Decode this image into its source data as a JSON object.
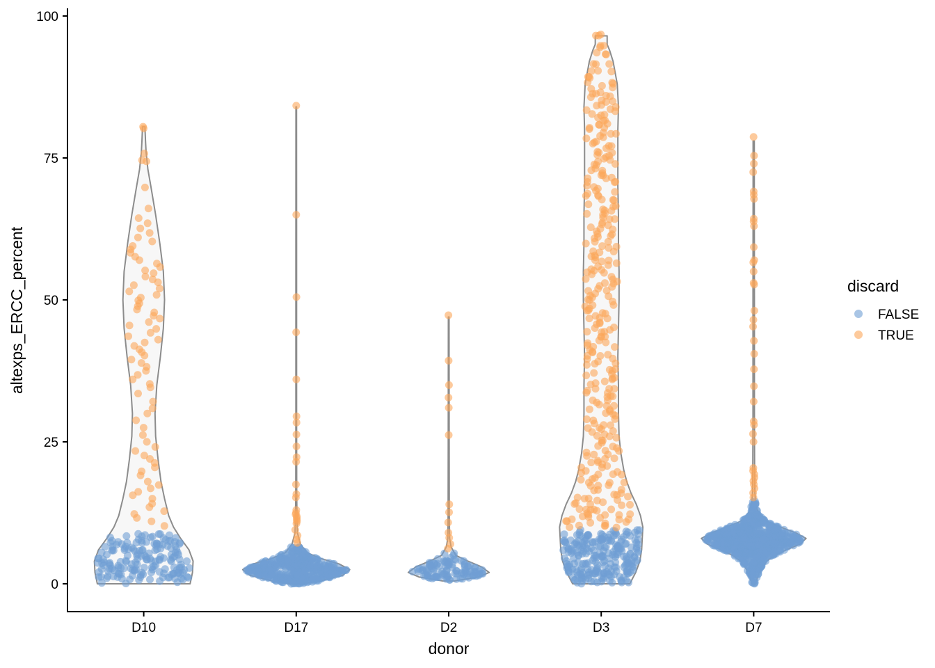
{
  "chart_data": {
    "type": "scatter",
    "subtype": "violin-with-jittered-points",
    "title": "",
    "xlabel": "donor",
    "ylabel": "altexps_ERCC_percent",
    "categories": [
      "D10",
      "D17",
      "D2",
      "D3",
      "D7"
    ],
    "ylim": [
      -5,
      101
    ],
    "yticks": [
      0,
      25,
      50,
      75,
      100
    ],
    "grid": false,
    "legend": {
      "title": "discard",
      "placement": "right",
      "entries": [
        {
          "label": "FALSE",
          "color": "#6f9fd4"
        },
        {
          "label": "TRUE",
          "color": "#fca65a"
        }
      ]
    },
    "colors": {
      "false": "#6f9fd4",
      "true": "#fca65a",
      "violin_outline": "#8c8c8c",
      "violin_fill": "#f7f7f7"
    },
    "violins": [
      {
        "category": "D10",
        "min": 0,
        "max": 80.5,
        "profile": [
          [
            0,
            0.78
          ],
          [
            2,
            0.82
          ],
          [
            4,
            0.83
          ],
          [
            6,
            0.76
          ],
          [
            8,
            0.62
          ],
          [
            10,
            0.5
          ],
          [
            12,
            0.42
          ],
          [
            15,
            0.35
          ],
          [
            18,
            0.29
          ],
          [
            22,
            0.24
          ],
          [
            26,
            0.2
          ],
          [
            30,
            0.19
          ],
          [
            35,
            0.22
          ],
          [
            40,
            0.28
          ],
          [
            45,
            0.33
          ],
          [
            50,
            0.35
          ],
          [
            55,
            0.33
          ],
          [
            60,
            0.27
          ],
          [
            65,
            0.2
          ],
          [
            70,
            0.12
          ],
          [
            73,
            0.07
          ],
          [
            76,
            0.04
          ],
          [
            78,
            0.03
          ],
          [
            80.5,
            0.02
          ]
        ]
      },
      {
        "category": "D17",
        "min": 0,
        "max": 84,
        "profile": [
          [
            0,
            0.1
          ],
          [
            0.5,
            0.4
          ],
          [
            1.5,
            0.78
          ],
          [
            2.5,
            0.9
          ],
          [
            3.5,
            0.72
          ],
          [
            4.5,
            0.4
          ],
          [
            5.5,
            0.18
          ],
          [
            7,
            0.07
          ],
          [
            9,
            0.02
          ],
          [
            12,
            0.012
          ],
          [
            16,
            0.008
          ],
          [
            30,
            0.006
          ],
          [
            60,
            0.006
          ],
          [
            84,
            0.005
          ]
        ]
      },
      {
        "category": "D2",
        "min": 0.5,
        "max": 47,
        "profile": [
          [
            0.5,
            0.1
          ],
          [
            1.2,
            0.5
          ],
          [
            2,
            0.68
          ],
          [
            3,
            0.55
          ],
          [
            4,
            0.32
          ],
          [
            5,
            0.12
          ],
          [
            6.5,
            0.04
          ],
          [
            8,
            0.015
          ],
          [
            12,
            0.01
          ],
          [
            25,
            0.008
          ],
          [
            47,
            0.006
          ]
        ]
      },
      {
        "category": "D3",
        "min": 0,
        "max": 96.5,
        "profile": [
          [
            0,
            0.48
          ],
          [
            2,
            0.58
          ],
          [
            4,
            0.65
          ],
          [
            6,
            0.68
          ],
          [
            8,
            0.69
          ],
          [
            10,
            0.7
          ],
          [
            12,
            0.66
          ],
          [
            14,
            0.59
          ],
          [
            16,
            0.5
          ],
          [
            18,
            0.43
          ],
          [
            20,
            0.38
          ],
          [
            23,
            0.33
          ],
          [
            26,
            0.3
          ],
          [
            30,
            0.29
          ],
          [
            35,
            0.29
          ],
          [
            40,
            0.28
          ],
          [
            45,
            0.29
          ],
          [
            50,
            0.3
          ],
          [
            55,
            0.3
          ],
          [
            60,
            0.29
          ],
          [
            65,
            0.29
          ],
          [
            70,
            0.28
          ],
          [
            75,
            0.28
          ],
          [
            80,
            0.28
          ],
          [
            84,
            0.29
          ],
          [
            88,
            0.27
          ],
          [
            92,
            0.2
          ],
          [
            94,
            0.14
          ],
          [
            95,
            0.1
          ],
          [
            96.5,
            0.1
          ]
        ]
      },
      {
        "category": "D7",
        "min": 0,
        "max": 78,
        "profile": [
          [
            0,
            0.03
          ],
          [
            1,
            0.06
          ],
          [
            2,
            0.09
          ],
          [
            3,
            0.15
          ],
          [
            4,
            0.22
          ],
          [
            5,
            0.35
          ],
          [
            6,
            0.55
          ],
          [
            7,
            0.78
          ],
          [
            8,
            0.88
          ],
          [
            9,
            0.7
          ],
          [
            10,
            0.45
          ],
          [
            11,
            0.22
          ],
          [
            12,
            0.12
          ],
          [
            13,
            0.06
          ],
          [
            14,
            0.035
          ],
          [
            16,
            0.02
          ],
          [
            20,
            0.015
          ],
          [
            30,
            0.012
          ],
          [
            50,
            0.012
          ],
          [
            70,
            0.01
          ],
          [
            78,
            0.01
          ]
        ]
      }
    ],
    "points": [
      {
        "category": "D10",
        "false_count": 170,
        "false_range": [
          0,
          9
        ],
        "true_values": [
          10.2,
          11.0,
          11.6,
          12.3,
          12.8,
          13.5,
          14.1,
          15.0,
          15.6,
          16.2,
          16.8,
          17.4,
          18.0,
          19.1,
          19.8,
          20.5,
          21.3,
          22.0,
          22.6,
          23.4,
          24.1,
          25.0,
          26.2,
          27.5,
          28.8,
          30.0,
          30.9,
          32.1,
          33.5,
          34.6,
          35.2,
          36.0,
          36.8,
          37.5,
          38.2,
          38.9,
          39.5,
          40.2,
          40.8,
          41.3,
          41.9,
          42.5,
          43.0,
          43.6,
          44.2,
          44.9,
          45.5,
          46.1,
          46.7,
          47.2,
          47.8,
          48.3,
          48.9,
          49.4,
          49.9,
          50.4,
          50.9,
          51.5,
          52.0,
          52.6,
          53.1,
          53.6,
          54.1,
          54.7,
          55.2,
          55.8,
          56.4,
          57.0,
          57.6,
          58.3,
          58.9,
          59.5,
          60.3,
          61.0,
          61.8,
          62.6,
          63.5,
          64.4,
          66.1,
          69.8,
          74.4,
          74.6,
          75.8,
          80.2,
          80.5
        ]
      },
      {
        "category": "D17",
        "false_count": 420,
        "false_range": [
          0,
          6.5
        ],
        "true_values": [
          7.2,
          7.8,
          8.5,
          9.5,
          10.6,
          11.0,
          11.3,
          11.6,
          11.9,
          12.2,
          12.5,
          13.0,
          15.2,
          15.8,
          17.5,
          21.5,
          22.3,
          24.2,
          26.3,
          28.4,
          29.5,
          36.0,
          44.3,
          50.5,
          65.0,
          84.2
        ]
      },
      {
        "category": "D2",
        "false_count": 110,
        "false_range": [
          0.5,
          5.5
        ],
        "true_values": [
          6.2,
          7.0,
          8.1,
          9.0,
          10.8,
          12.6,
          14.0,
          26.2,
          31.0,
          32.8,
          35.0,
          39.3,
          47.3
        ]
      },
      {
        "category": "D3",
        "false_count": 240,
        "false_range": [
          0,
          9.5
        ],
        "true_values": [
          10.0,
          10.4,
          10.8,
          11.2,
          11.6,
          12.0,
          12.4,
          12.8,
          13.3,
          13.8,
          14.3,
          14.8,
          15.3,
          15.9,
          16.5,
          17.1,
          17.8,
          18.4,
          19.1,
          19.8,
          20.5,
          21.2,
          21.9,
          22.7,
          23.4,
          24.2,
          25.0,
          25.8,
          26.6,
          27.4,
          28.2,
          29.0,
          29.8,
          30.6,
          31.4,
          32.2,
          33.0,
          33.8,
          34.6,
          35.4,
          36.2,
          37.0,
          37.8,
          38.6,
          39.4,
          40.2,
          41.0,
          41.8,
          42.6,
          43.4,
          44.2,
          45.0,
          45.8,
          46.6,
          47.4,
          48.2,
          49.0,
          49.8,
          50.6,
          51.4,
          52.2,
          53.0,
          53.8,
          54.6,
          55.4,
          56.2,
          57.0,
          57.8,
          58.6,
          59.4,
          60.2,
          61.0,
          61.8,
          62.6,
          63.4,
          64.2,
          65.0,
          65.8,
          66.6,
          67.4,
          68.2,
          69.0,
          69.8,
          70.6,
          71.4,
          72.2,
          73.0,
          73.8,
          74.6,
          75.4,
          76.2,
          77.0,
          77.8,
          78.6,
          79.4,
          80.2,
          81.0,
          81.8,
          82.6,
          83.4,
          84.2,
          85.0,
          85.8,
          86.6,
          87.4,
          88.2,
          89.0,
          90.1,
          91.8,
          93.4,
          94.6,
          96.5
        ],
        "true_density_note": "about 3 points per value"
      },
      {
        "category": "D7",
        "false_count": 700,
        "false_range": [
          0,
          14.5
        ],
        "true_values": [
          15.2,
          16.0,
          16.8,
          17.5,
          18.1,
          18.7,
          19.3,
          19.9,
          20.4,
          25.0,
          26.4,
          28.0,
          28.6,
          32.1,
          34.8,
          37.8,
          40.5,
          42.8,
          45.3,
          46.5,
          48.1,
          52.7,
          53.0,
          55.0,
          56.6,
          57.0,
          59.3,
          63.0,
          63.8,
          64.3,
          67.8,
          68.5,
          69.1,
          72.5,
          74.0,
          75.4,
          78.7
        ]
      }
    ]
  }
}
